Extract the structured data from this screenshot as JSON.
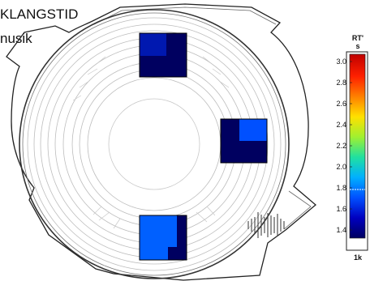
{
  "title": {
    "line1": "KLANGSTID",
    "line2": "nusik"
  },
  "colorbar": {
    "unit_top": "RT'",
    "unit_bottom": "s",
    "ticks": [
      "3.0",
      "2.8",
      "2.6",
      "2.4",
      "2.2",
      "2.0",
      "1.8",
      "1.6",
      "1.4"
    ],
    "frequency": "1k",
    "min": 1.3,
    "max": 3.05,
    "marker_value": 1.8,
    "colors": [
      "#000060",
      "#0000c0",
      "#0050ff",
      "#00b0ff",
      "#20e0a0",
      "#a0f030",
      "#ffe000",
      "#ff8000",
      "#ff2000",
      "#c00000"
    ]
  },
  "speakers": [
    {
      "position": "top",
      "value": 1.35
    },
    {
      "position": "right",
      "value": 1.5
    },
    {
      "position": "bottom",
      "value": 1.62
    }
  ],
  "icons": {
    "waveform": "audio-waveform-icon"
  }
}
